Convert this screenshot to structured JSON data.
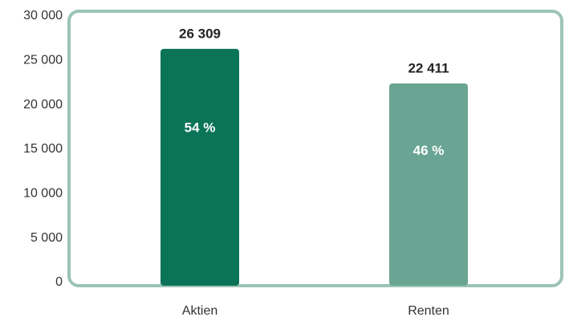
{
  "chart_data": {
    "type": "bar",
    "categories": [
      "Aktien",
      "Renten"
    ],
    "values": [
      26309,
      22411
    ],
    "value_labels": [
      "26 309",
      "22 411"
    ],
    "shares": [
      54,
      46
    ],
    "share_labels": [
      "54 %",
      "46 %"
    ],
    "colors": [
      "#0b7358",
      "#6aa593"
    ],
    "ylim": [
      0,
      30000
    ],
    "yticks": [
      0,
      {
        "value": 5000,
        "label": "5 000"
      },
      {
        "value": 10000,
        "label": "10 000"
      },
      {
        "value": 15000,
        "label": "15 000"
      },
      {
        "value": 20000,
        "label": "20 000"
      },
      {
        "value": 25000,
        "label": "25 000"
      },
      {
        "value": 30000,
        "label": "30 000"
      }
    ]
  }
}
